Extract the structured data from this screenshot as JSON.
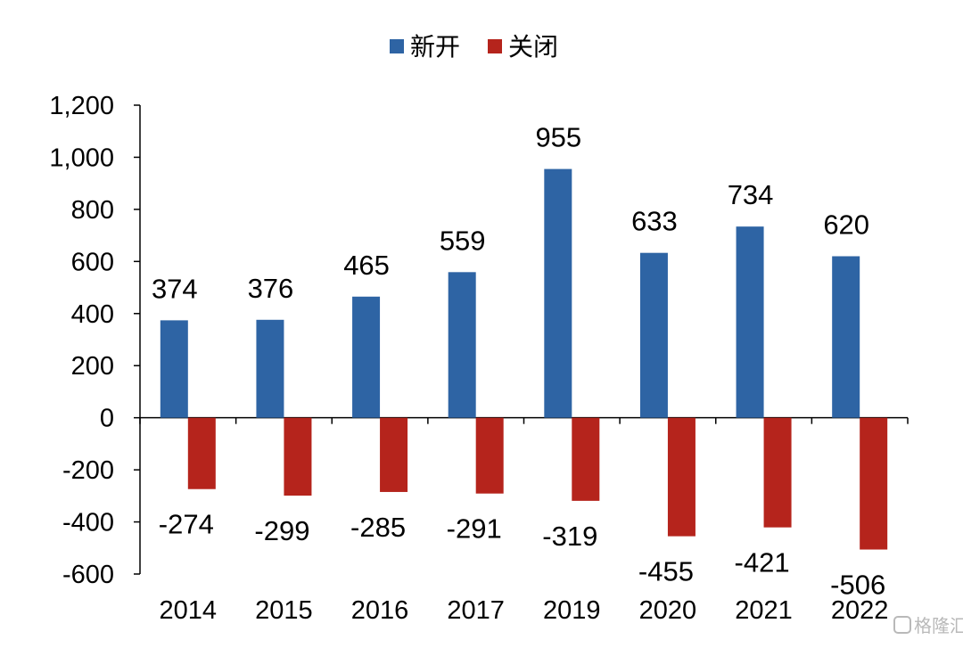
{
  "chart_data": {
    "type": "bar",
    "title": "",
    "xlabel": "",
    "ylabel": "",
    "categories": [
      "2014",
      "2015",
      "2016",
      "2017",
      "2019",
      "2020",
      "2021",
      "2022"
    ],
    "series": [
      {
        "name": "新开",
        "color": "#2E64A4",
        "values": [
          374,
          376,
          465,
          559,
          955,
          633,
          734,
          620
        ]
      },
      {
        "name": "关闭",
        "color": "#B5241C",
        "values": [
          -274,
          -299,
          -285,
          -291,
          -319,
          -455,
          -421,
          -506
        ]
      }
    ],
    "data_labels": {
      "positive": [
        "374",
        "376",
        "465",
        "559",
        "955",
        "633",
        "734",
        "620"
      ],
      "negative": [
        "-274",
        "-299",
        "-285",
        "-291",
        "-319",
        "-455",
        "-421",
        "-506"
      ]
    },
    "ylim": [
      -600,
      1200
    ],
    "yticks": [
      -600,
      -400,
      -200,
      0,
      200,
      400,
      600,
      800,
      1000,
      1200
    ],
    "ytick_labels": [
      "-600",
      "-400",
      "-200",
      "0",
      "200",
      "400",
      "600",
      "800",
      "1,000",
      "1,200"
    ],
    "grid": false,
    "legend_position": "top-center"
  },
  "watermark": {
    "text": "格隆汇",
    "icon": "glh-logo-icon"
  }
}
